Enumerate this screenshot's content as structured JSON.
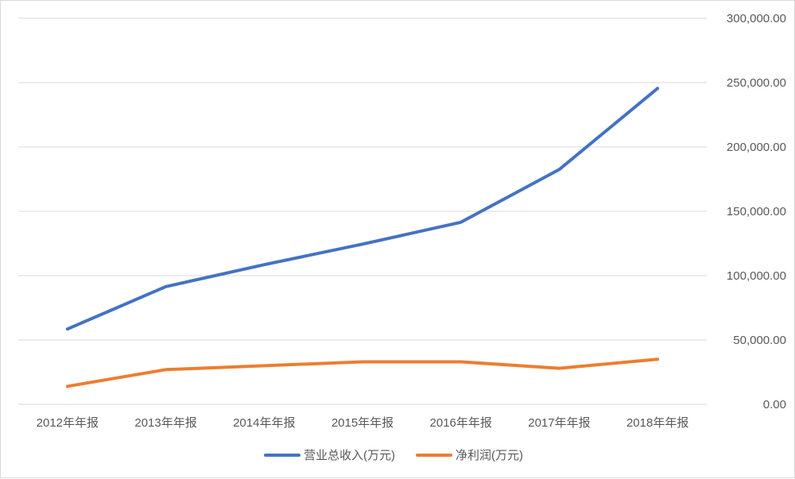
{
  "chart_data": {
    "type": "line",
    "title": "",
    "xlabel": "",
    "ylabel": "",
    "categories": [
      "2012年年报",
      "2013年年报",
      "2014年年报",
      "2015年年报",
      "2016年年报",
      "2017年年报",
      "2018年年报"
    ],
    "ylim": [
      0,
      300000
    ],
    "yticks": [
      0,
      50000,
      100000,
      150000,
      200000,
      250000,
      300000
    ],
    "ytick_labels": [
      "0.00",
      "50,000.00",
      "100,000.00",
      "150,000.00",
      "200,000.00",
      "250,000.00",
      "300,000.00"
    ],
    "y_axis_side": "right",
    "grid": true,
    "legend_position": "bottom",
    "series": [
      {
        "name": "营业总收入(万元)",
        "color": "#4472c4",
        "values": [
          58500,
          91500,
          108500,
          124500,
          141500,
          182500,
          245500
        ]
      },
      {
        "name": "净利润(万元)",
        "color": "#ed7d31",
        "values": [
          14000,
          27000,
          30000,
          33000,
          33000,
          28000,
          35000
        ]
      }
    ]
  }
}
